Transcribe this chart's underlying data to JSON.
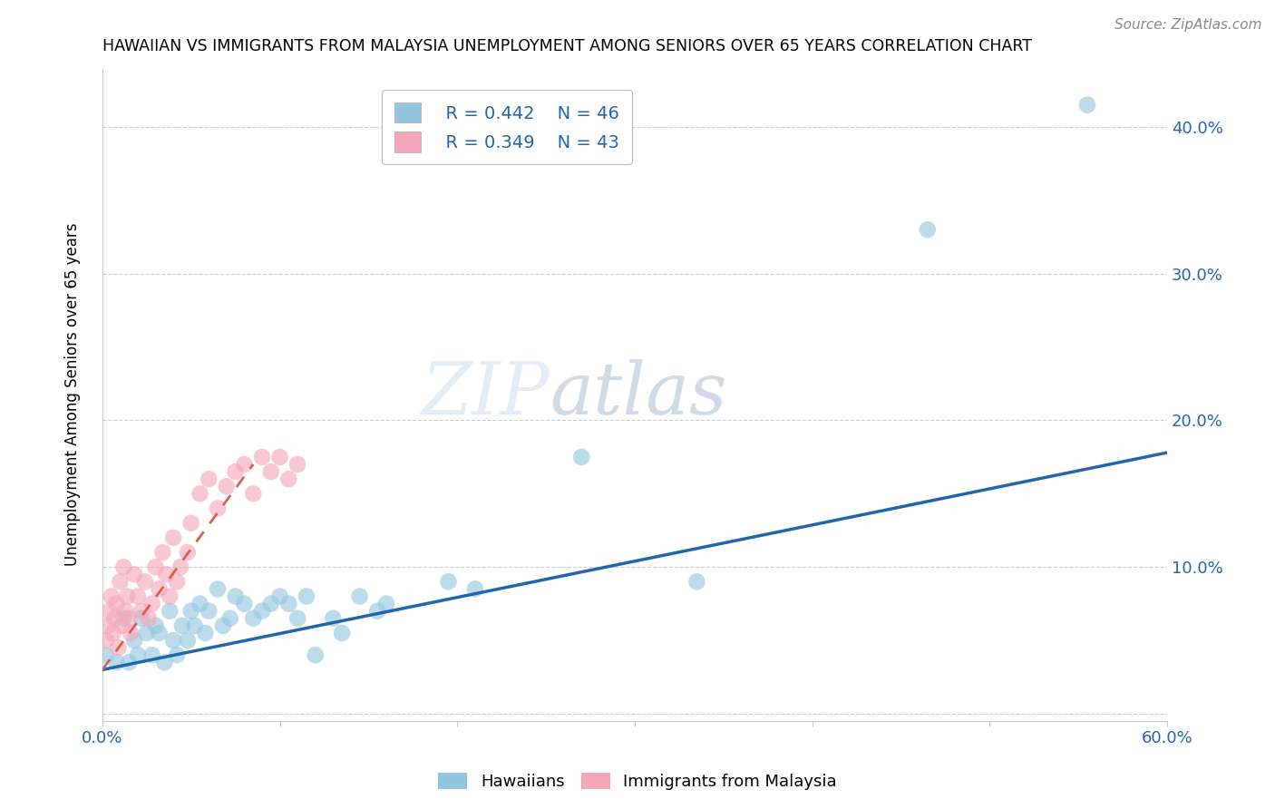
{
  "title": "HAWAIIAN VS IMMIGRANTS FROM MALAYSIA UNEMPLOYMENT AMONG SENIORS OVER 65 YEARS CORRELATION CHART",
  "source": "Source: ZipAtlas.com",
  "ylabel": "Unemployment Among Seniors over 65 years",
  "xlim": [
    0,
    0.6
  ],
  "ylim": [
    -0.005,
    0.44
  ],
  "x_ticks": [
    0.0,
    0.1,
    0.2,
    0.3,
    0.4,
    0.5,
    0.6
  ],
  "x_tick_labels": [
    "0.0%",
    "",
    "",
    "",
    "",
    "",
    "60.0%"
  ],
  "y_ticks": [
    0.0,
    0.1,
    0.2,
    0.3,
    0.4
  ],
  "y_tick_labels_right": [
    "",
    "10.0%",
    "20.0%",
    "30.0%",
    "40.0%"
  ],
  "legend_blue_R": "R = 0.442",
  "legend_blue_N": "N = 46",
  "legend_pink_R": "R = 0.349",
  "legend_pink_N": "N = 43",
  "blue_color": "#92c5de",
  "pink_color": "#f4a6b8",
  "blue_line_color": "#2166ac",
  "pink_line_color": "#d6604d",
  "grid_color": "#cccccc",
  "watermark_zip": "ZIP",
  "watermark_atlas": "atlas",
  "blue_line_x": [
    0.0,
    0.6
  ],
  "blue_line_y": [
    0.03,
    0.178
  ],
  "pink_line_x": [
    0.0,
    0.085
  ],
  "pink_line_y": [
    0.03,
    0.17
  ],
  "hawaiians_x": [
    0.002,
    0.008,
    0.012,
    0.015,
    0.018,
    0.02,
    0.022,
    0.025,
    0.028,
    0.03,
    0.032,
    0.035,
    0.038,
    0.04,
    0.042,
    0.045,
    0.048,
    0.05,
    0.052,
    0.055,
    0.058,
    0.06,
    0.065,
    0.068,
    0.072,
    0.075,
    0.08,
    0.085,
    0.09,
    0.095,
    0.1,
    0.105,
    0.11,
    0.115,
    0.12,
    0.13,
    0.135,
    0.145,
    0.155,
    0.16,
    0.195,
    0.21,
    0.27,
    0.335,
    0.465,
    0.555
  ],
  "hawaiians_y": [
    0.04,
    0.035,
    0.065,
    0.035,
    0.05,
    0.04,
    0.065,
    0.055,
    0.04,
    0.06,
    0.055,
    0.035,
    0.07,
    0.05,
    0.04,
    0.06,
    0.05,
    0.07,
    0.06,
    0.075,
    0.055,
    0.07,
    0.085,
    0.06,
    0.065,
    0.08,
    0.075,
    0.065,
    0.07,
    0.075,
    0.08,
    0.075,
    0.065,
    0.08,
    0.04,
    0.065,
    0.055,
    0.08,
    0.07,
    0.075,
    0.09,
    0.085,
    0.175,
    0.09,
    0.33,
    0.415
  ],
  "malaysia_x": [
    0.002,
    0.003,
    0.004,
    0.005,
    0.006,
    0.007,
    0.008,
    0.009,
    0.01,
    0.011,
    0.012,
    0.013,
    0.014,
    0.015,
    0.016,
    0.018,
    0.02,
    0.022,
    0.024,
    0.026,
    0.028,
    0.03,
    0.032,
    0.034,
    0.036,
    0.038,
    0.04,
    0.042,
    0.044,
    0.048,
    0.05,
    0.055,
    0.06,
    0.065,
    0.07,
    0.075,
    0.08,
    0.085,
    0.09,
    0.095,
    0.1,
    0.105,
    0.11
  ],
  "malaysia_y": [
    0.05,
    0.06,
    0.07,
    0.08,
    0.055,
    0.065,
    0.075,
    0.045,
    0.09,
    0.06,
    0.1,
    0.07,
    0.08,
    0.065,
    0.055,
    0.095,
    0.08,
    0.07,
    0.09,
    0.065,
    0.075,
    0.1,
    0.085,
    0.11,
    0.095,
    0.08,
    0.12,
    0.09,
    0.1,
    0.11,
    0.13,
    0.15,
    0.16,
    0.14,
    0.155,
    0.165,
    0.17,
    0.15,
    0.175,
    0.165,
    0.175,
    0.16,
    0.17
  ]
}
